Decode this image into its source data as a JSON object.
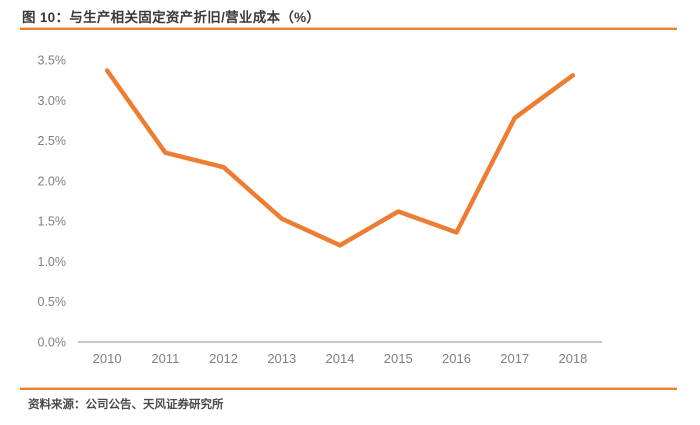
{
  "header": {
    "title": "图 10：与生产相关固定资产折旧/营业成本（%）"
  },
  "footer": {
    "source": "资料来源：公司公告、天风证券研究所"
  },
  "colors": {
    "accent_orange": "#ED7D31",
    "axis_line_gray": "#C8C8C8",
    "label_gray": "#808080",
    "title_text": "#3B3838"
  },
  "chart_data": {
    "type": "line",
    "title": "与生产相关固定资产折旧/营业成本（%）",
    "x": [
      "2010",
      "2011",
      "2012",
      "2013",
      "2014",
      "2015",
      "2016",
      "2017",
      "2018"
    ],
    "values": [
      3.37,
      2.35,
      2.17,
      1.53,
      1.2,
      1.62,
      1.36,
      2.78,
      3.31
    ],
    "y_ticks": [
      "0.0%",
      "0.5%",
      "1.0%",
      "1.5%",
      "2.0%",
      "2.5%",
      "3.0%",
      "3.5%"
    ],
    "xlabel": "",
    "ylabel": "",
    "ylim": [
      0,
      3.5
    ],
    "grid": "off",
    "legend": "none",
    "series_color": "#ED7D31"
  }
}
